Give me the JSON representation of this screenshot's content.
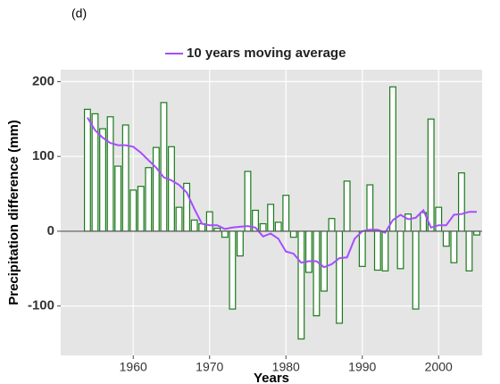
{
  "chart_data": {
    "type": "bar_line",
    "panel_label": "(d)",
    "x_label": "Years",
    "y_label": "Precipitation difference (mm)",
    "x": [
      1954,
      1955,
      1956,
      1957,
      1958,
      1959,
      1960,
      1961,
      1962,
      1963,
      1964,
      1965,
      1966,
      1967,
      1968,
      1969,
      1970,
      1971,
      1972,
      1973,
      1974,
      1975,
      1976,
      1977,
      1978,
      1979,
      1980,
      1981,
      1982,
      1983,
      1984,
      1985,
      1986,
      1987,
      1988,
      1989,
      1990,
      1991,
      1992,
      1993,
      1994,
      1995,
      1996,
      1997,
      1998,
      1999,
      2000,
      2001,
      2002,
      2003,
      2004,
      2005
    ],
    "series": [
      {
        "color": "#1a7a1a",
        "values": [
          163,
          157,
          137,
          153,
          87,
          142,
          55,
          60,
          85,
          112,
          172,
          113,
          32,
          64,
          15,
          10,
          26,
          4,
          -8,
          -104,
          -33,
          80,
          28,
          10,
          36,
          12,
          48,
          -8,
          -144,
          -55,
          -113,
          -80,
          17,
          -123,
          67,
          0,
          -47,
          62,
          -52,
          -53,
          193,
          -50,
          23,
          -104,
          25,
          150,
          32,
          -20,
          -42,
          78,
          -53,
          -5
        ]
      },
      {
        "name": "10 years moving average",
        "color": "#a64dff",
        "values": [
          152,
          135,
          125,
          118,
          115,
          115,
          113,
          105,
          95,
          85,
          72,
          68,
          62,
          52,
          30,
          10,
          8,
          8,
          3,
          5,
          6,
          7,
          5,
          -7,
          -3,
          -10,
          -27,
          -30,
          -42,
          -40,
          -40,
          -48,
          -44,
          -36,
          -35,
          -10,
          0,
          2,
          2,
          -2,
          15,
          22,
          16,
          18,
          28,
          5,
          8,
          8,
          22,
          23,
          26,
          26
        ]
      }
    ],
    "xlim": [
      1950.5,
      2005.7
    ],
    "xticks": [
      1960,
      1970,
      1980,
      1990,
      2000
    ],
    "ylim": [
      -166,
      216
    ],
    "yticks": [
      -100,
      0,
      100,
      200
    ],
    "grid": true
  }
}
